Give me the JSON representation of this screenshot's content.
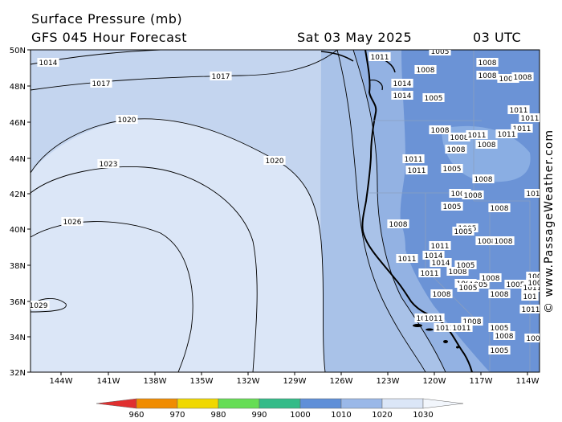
{
  "header": {
    "title": "Surface Pressure (mb)",
    "subtitle": "GFS 045 Hour Forecast",
    "date": "Sat 03 May 2025",
    "time": "03 UTC"
  },
  "axes": {
    "lat_labels": [
      "50N",
      "48N",
      "46N",
      "44N",
      "42N",
      "40N",
      "38N",
      "36N",
      "34N",
      "32N"
    ],
    "lon_labels": [
      "144W",
      "141W",
      "138W",
      "135W",
      "132W",
      "129W",
      "126W",
      "123W",
      "120W",
      "117W",
      "114W"
    ]
  },
  "isobar_labels": [
    {
      "id": "1014-nw",
      "text": "1014"
    },
    {
      "id": "1017-w",
      "text": "1017"
    },
    {
      "id": "1017-mid",
      "text": "1017"
    },
    {
      "id": "1020-w",
      "text": "1020"
    },
    {
      "id": "1020-e",
      "text": "1020"
    },
    {
      "id": "1023",
      "text": "1023"
    },
    {
      "id": "1026",
      "text": "1026"
    },
    {
      "id": "1029",
      "text": "1029"
    },
    {
      "id": "1011-wa",
      "text": "1011"
    },
    {
      "id": "1014-wa",
      "text": "1014"
    },
    {
      "id": "1014-wa2",
      "text": "1014"
    },
    {
      "id": "1008-wa",
      "text": "1008"
    },
    {
      "id": "1005-wa",
      "text": "1005"
    },
    {
      "id": "1005-top",
      "text": "1005"
    },
    {
      "id": "1008-mt",
      "text": "1008"
    },
    {
      "id": "1008-mt2",
      "text": "1008"
    },
    {
      "id": "1005-mt",
      "text": "1005"
    },
    {
      "id": "1008-mt3",
      "text": "1008"
    },
    {
      "id": "1011-mt",
      "text": "1011"
    },
    {
      "id": "1011-mt2",
      "text": "1011"
    },
    {
      "id": "1011-mt3",
      "text": "1011"
    },
    {
      "id": "1011-mt4",
      "text": "1011"
    },
    {
      "id": "1008-or",
      "text": "1008"
    },
    {
      "id": "1008-or2",
      "text": "1008"
    },
    {
      "id": "1011-or",
      "text": "1011"
    },
    {
      "id": "1008-or3",
      "text": "1008"
    },
    {
      "id": "1011-or2",
      "text": "1011"
    },
    {
      "id": "1011-or3",
      "text": "1011"
    },
    {
      "id": "1008-nv",
      "text": "1008"
    },
    {
      "id": "1005-nv",
      "text": "1005"
    },
    {
      "id": "1008-nv2",
      "text": "1008"
    },
    {
      "id": "1008-nv3",
      "text": "1008"
    },
    {
      "id": "1008-nv4",
      "text": "1008"
    },
    {
      "id": "1005-nv2",
      "text": "1005"
    },
    {
      "id": "1008-nv5",
      "text": "1008"
    },
    {
      "id": "1008-ca",
      "text": "1008"
    },
    {
      "id": "1005-ca",
      "text": "1005"
    },
    {
      "id": "1005-ca2",
      "text": "1005"
    },
    {
      "id": "1008-ca2",
      "text": "1008"
    },
    {
      "id": "1008-ca3",
      "text": "1008"
    },
    {
      "id": "1011-ca",
      "text": "1011"
    },
    {
      "id": "1014-ca",
      "text": "1014"
    },
    {
      "id": "1014-ca2",
      "text": "1014"
    },
    {
      "id": "1008-ca4",
      "text": "1008"
    },
    {
      "id": "1005-ca3",
      "text": "1005"
    },
    {
      "id": "1011-ca2",
      "text": "1011"
    },
    {
      "id": "1011-ca3",
      "text": "1011"
    },
    {
      "id": "1008-ca5",
      "text": "1008"
    },
    {
      "id": "1005-ca4",
      "text": "1005"
    },
    {
      "id": "1005-ca5",
      "text": "1005"
    },
    {
      "id": "1008-ca6",
      "text": "1008"
    },
    {
      "id": "1005-ca6",
      "text": "1005"
    },
    {
      "id": "1011-ca4",
      "text": "1011"
    },
    {
      "id": "1008-ca7",
      "text": "1008"
    },
    {
      "id": "1014-sc",
      "text": "1014"
    },
    {
      "id": "1011-sc",
      "text": "1011"
    },
    {
      "id": "1011-sc2",
      "text": "1011"
    },
    {
      "id": "1008-sc",
      "text": "1008"
    },
    {
      "id": "1005-sc",
      "text": "1005"
    },
    {
      "id": "1005-sc2",
      "text": "1005"
    },
    {
      "id": "1011-az",
      "text": "1011"
    },
    {
      "id": "1011-az2",
      "text": "1011"
    },
    {
      "id": "1008-az",
      "text": "1008"
    },
    {
      "id": "1008-az2",
      "text": "1008"
    },
    {
      "id": "100-az",
      "text": "100"
    },
    {
      "id": "100-az2",
      "text": "100"
    },
    {
      "id": "101-e",
      "text": "101"
    },
    {
      "id": "1011-e2",
      "text": "1011"
    },
    {
      "id": "101-e3",
      "text": "101"
    },
    {
      "id": "100-e4",
      "text": "100"
    }
  ],
  "legend": {
    "labels": [
      "960",
      "970",
      "980",
      "990",
      "1000",
      "1010",
      "1020",
      "1030"
    ],
    "colors": [
      "#e03030",
      "#f08c00",
      "#f0d800",
      "#66dd55",
      "#33bb88",
      "#5f8fd8",
      "#9ab8e8",
      "#dbe6f7"
    ]
  },
  "colors": {
    "high_1026": "#dde7f6",
    "band_1020": "#a8c1e8",
    "band_1010": "#7ea3de",
    "land_low": "#6b93d6"
  },
  "credit": "© www.PassageWeather.com"
}
